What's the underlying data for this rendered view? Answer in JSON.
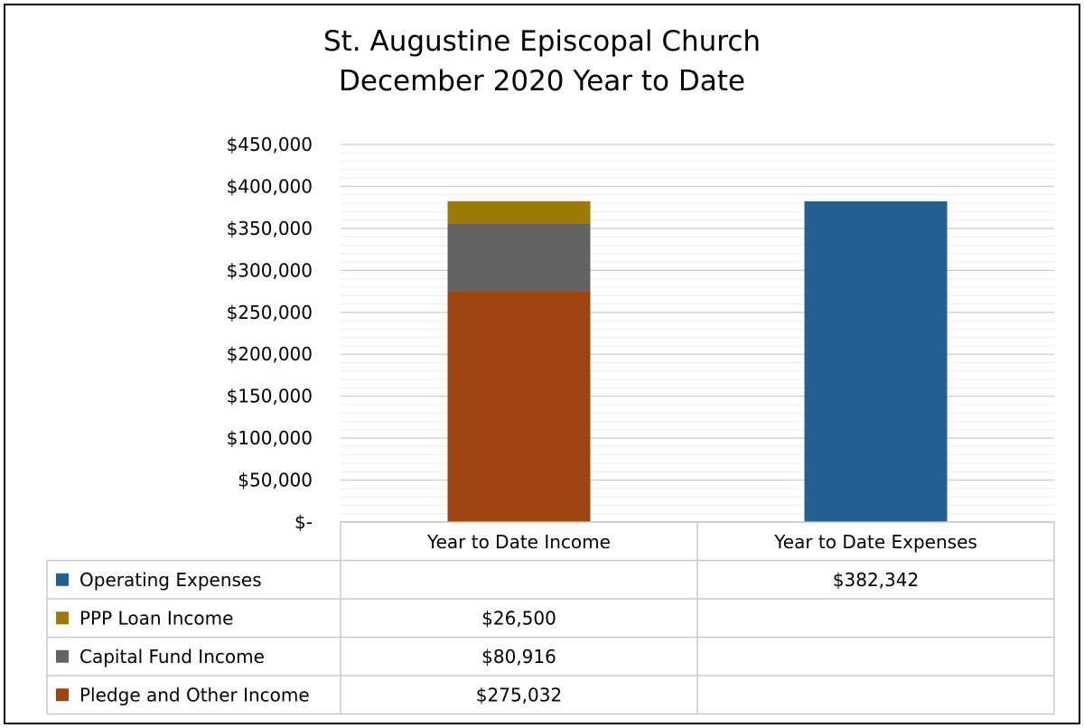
{
  "chart_data": {
    "type": "bar",
    "stacked": true,
    "title": [
      "St. Augustine Episcopal Church",
      "December 2020 Year to Date"
    ],
    "categories": [
      "Year to Date Income",
      "Year to Date Expenses"
    ],
    "ylim": [
      0,
      450000
    ],
    "yticks": [
      0,
      50000,
      100000,
      150000,
      200000,
      250000,
      300000,
      350000,
      400000,
      450000
    ],
    "ytick_labels": [
      "$-",
      "$50,000",
      "$100,000",
      "$150,000",
      "$200,000",
      "$250,000",
      "$300,000",
      "$350,000",
      "$400,000",
      "$450,000"
    ],
    "grid": true,
    "legend_placement": "data table below chart",
    "series": [
      {
        "name": "Pledge and Other Income",
        "color": "#9C4510",
        "values": [
          275032,
          null
        ],
        "labels": [
          "$275,032",
          ""
        ]
      },
      {
        "name": "Capital Fund Income",
        "color": "#636363",
        "values": [
          80916,
          null
        ],
        "labels": [
          "$80,916",
          ""
        ]
      },
      {
        "name": "PPP Loan Income",
        "color": "#9C7A03",
        "values": [
          26500,
          null
        ],
        "labels": [
          "$26,500",
          ""
        ]
      },
      {
        "name": "Operating Expenses",
        "color": "#255E91",
        "values": [
          null,
          382342
        ],
        "labels": [
          "",
          "$382,342"
        ]
      }
    ],
    "table_order": [
      "Operating Expenses",
      "PPP Loan Income",
      "Capital Fund Income",
      "Pledge and Other Income"
    ]
  }
}
